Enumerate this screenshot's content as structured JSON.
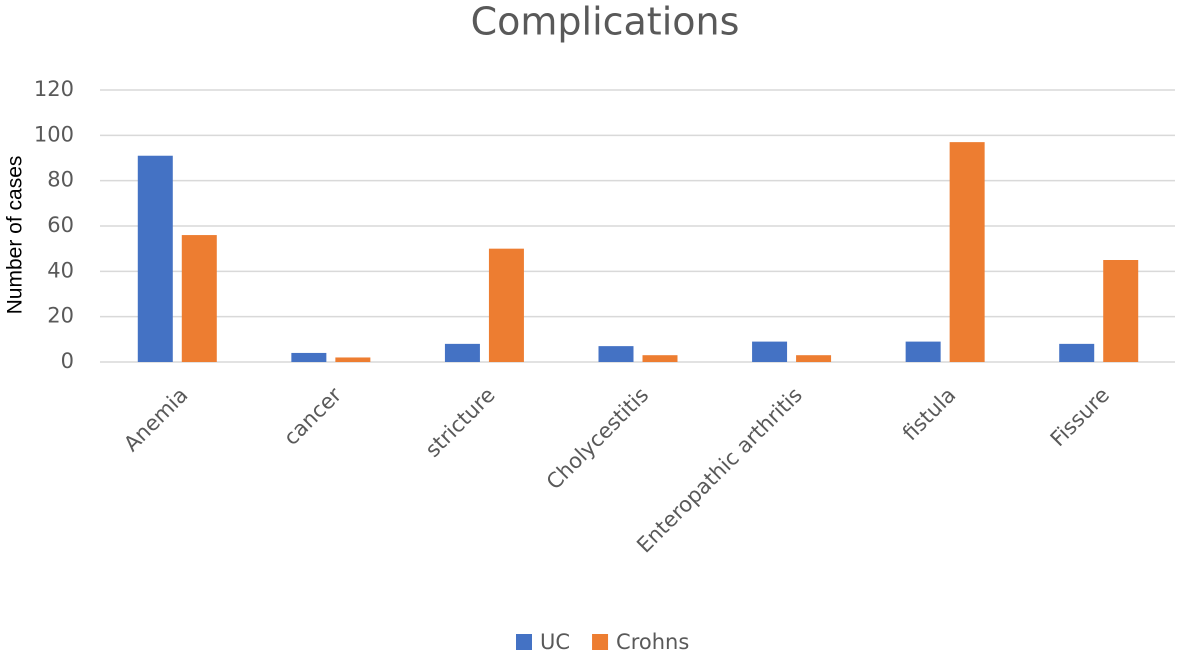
{
  "chart_data": {
    "type": "bar",
    "title": "Complications",
    "y_label": "Number of cases",
    "categories": [
      "Anemia",
      "cancer",
      "stricture",
      "Cholycestitis",
      "Enteropathic arthritis",
      "fistula",
      "Fissure"
    ],
    "series": [
      {
        "name": "UC",
        "color": "#4472c4",
        "values": [
          91,
          4,
          8,
          7,
          9,
          9,
          8
        ]
      },
      {
        "name": "Crohns",
        "color": "#ed7d31",
        "values": [
          56,
          2,
          50,
          3,
          3,
          97,
          45
        ]
      }
    ],
    "ylim": [
      0,
      120
    ],
    "yticks": [
      0,
      20,
      40,
      60,
      80,
      100,
      120
    ],
    "grid": true,
    "legend": "bottom"
  }
}
